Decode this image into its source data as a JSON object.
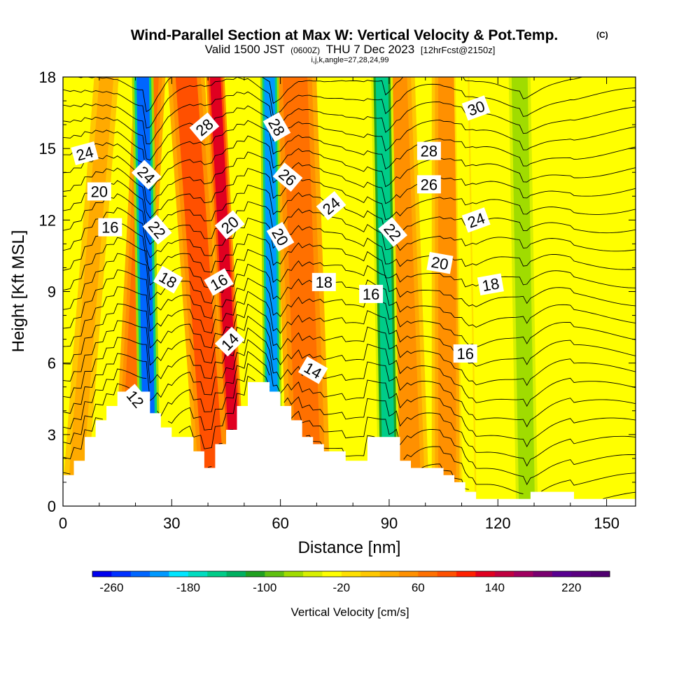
{
  "title": {
    "main": "Wind-Parallel Section at Max W: Vertical Velocity & Pot.Temp.",
    "copyright": "(C)",
    "valid_prefix": "Valid 1500 JST",
    "valid_z": "(0600Z)",
    "valid_date": "THU 7 Dec 2023",
    "valid_fcst": "[12hrFcst@2150z]",
    "indices": "i,j,k,angle=27,28,24,99"
  },
  "chart_data": {
    "type": "heatmap",
    "xlabel": "Distance [nm]",
    "ylabel": "Height [Kft MSL]",
    "xlim": [
      0,
      158
    ],
    "ylim": [
      0,
      18
    ],
    "x_ticks": [
      "0",
      "30",
      "60",
      "90",
      "120",
      "150"
    ],
    "x_tick_values": [
      0,
      30,
      60,
      90,
      120,
      150
    ],
    "y_ticks": [
      "0",
      "3",
      "6",
      "9",
      "12",
      "15",
      "18"
    ],
    "y_tick_values": [
      0,
      3,
      6,
      9,
      12,
      15,
      18
    ],
    "colorbar": {
      "label": "Vertical Velocity [cm/s]",
      "tick_labels": [
        "-260",
        "-180",
        "-100",
        "-20",
        "60",
        "140",
        "220"
      ],
      "tick_values": [
        -260,
        -180,
        -100,
        -20,
        60,
        140,
        220
      ],
      "range": [
        -280,
        260
      ],
      "step": 20,
      "colors": [
        "#0000ee",
        "#0030ff",
        "#0066ff",
        "#0099ff",
        "#00e5ff",
        "#00dcc0",
        "#00cc88",
        "#00b060",
        "#20a020",
        "#60c010",
        "#a0dc00",
        "#d8f000",
        "#ffff00",
        "#ffe000",
        "#ffc800",
        "#ffaa00",
        "#ff9000",
        "#ff7000",
        "#ff5000",
        "#ff2000",
        "#e00020",
        "#c00040",
        "#a00060",
        "#7a0070",
        "#580090",
        "#5a0080",
        "#500070"
      ]
    },
    "terrain_kft": [
      [
        0,
        1.3
      ],
      [
        3,
        1.3
      ],
      [
        3,
        1.9
      ],
      [
        6,
        1.9
      ],
      [
        6,
        2.9
      ],
      [
        9,
        2.9
      ],
      [
        9,
        3.6
      ],
      [
        12,
        3.6
      ],
      [
        12,
        4.2
      ],
      [
        15,
        4.2
      ],
      [
        15,
        4.8
      ],
      [
        24,
        4.8
      ],
      [
        24,
        3.9
      ],
      [
        27,
        3.9
      ],
      [
        27,
        3.3
      ],
      [
        30,
        3.3
      ],
      [
        30,
        2.9
      ],
      [
        36,
        2.9
      ],
      [
        36,
        2.3
      ],
      [
        39,
        2.3
      ],
      [
        39,
        1.6
      ],
      [
        42,
        1.6
      ],
      [
        42,
        2.6
      ],
      [
        45,
        2.6
      ],
      [
        45,
        3.2
      ],
      [
        48,
        3.2
      ],
      [
        48,
        4.2
      ],
      [
        51,
        4.2
      ],
      [
        51,
        5.2
      ],
      [
        57,
        5.2
      ],
      [
        57,
        4.8
      ],
      [
        60,
        4.8
      ],
      [
        60,
        4.2
      ],
      [
        63,
        4.2
      ],
      [
        63,
        3.6
      ],
      [
        66,
        3.6
      ],
      [
        66,
        2.9
      ],
      [
        69,
        2.9
      ],
      [
        69,
        2.6
      ],
      [
        72,
        2.6
      ],
      [
        72,
        2.3
      ],
      [
        78,
        2.3
      ],
      [
        78,
        1.9
      ],
      [
        84,
        1.9
      ],
      [
        84,
        2.9
      ],
      [
        93,
        2.9
      ],
      [
        93,
        1.9
      ],
      [
        96,
        1.9
      ],
      [
        96,
        1.6
      ],
      [
        105,
        1.6
      ],
      [
        105,
        1.3
      ],
      [
        108,
        1.3
      ],
      [
        108,
        1.0
      ],
      [
        111,
        1.0
      ],
      [
        111,
        0.6
      ],
      [
        114,
        0.6
      ],
      [
        114,
        0.3
      ],
      [
        129,
        0.3
      ],
      [
        129,
        0.6
      ],
      [
        141,
        0.6
      ],
      [
        141,
        0.3
      ],
      [
        158,
        0.3
      ]
    ],
    "updraft_bands": [
      {
        "x_at_0": 3,
        "x_at_18": 12,
        "width_nm": 8,
        "value": 20
      },
      {
        "x_at_0": 18,
        "x_at_18": 24,
        "width_nm": 10,
        "value": 60
      },
      {
        "x_at_0": 42,
        "x_at_18": 34,
        "width_nm": 12,
        "value": 80
      },
      {
        "x_at_0": 48,
        "x_at_18": 42,
        "width_nm": 6,
        "value": 120
      },
      {
        "x_at_0": 68,
        "x_at_18": 64,
        "width_nm": 14,
        "value": 60
      },
      {
        "x_at_0": 96,
        "x_at_18": 92,
        "width_nm": 12,
        "value": 40
      },
      {
        "x_at_0": 106,
        "x_at_18": 106,
        "width_nm": 10,
        "value": 40
      }
    ],
    "downdraft_bands": [
      {
        "x_at_0": 24,
        "x_at_18": 22,
        "width_nm": 7,
        "value": -240
      },
      {
        "x_at_0": 58,
        "x_at_18": 57,
        "width_nm": 6,
        "value": -220
      },
      {
        "x_at_0": 90,
        "x_at_18": 88,
        "width_nm": 7,
        "value": -160
      },
      {
        "x_at_0": 128,
        "x_at_18": 126,
        "width_nm": 9,
        "value": -80
      },
      {
        "x_at_0": 112,
        "x_at_18": 110,
        "width_nm": 5,
        "value": -40
      }
    ],
    "theta_contours": {
      "levels": [
        12,
        14,
        16,
        18,
        20,
        22,
        24,
        26,
        28,
        30
      ],
      "labels": [
        {
          "text": "12",
          "x": 20,
          "y": 4.5,
          "angle": 50
        },
        {
          "text": "14",
          "x": 46,
          "y": 6.9,
          "angle": -45
        },
        {
          "text": "14",
          "x": 69,
          "y": 5.7,
          "angle": 30
        },
        {
          "text": "16",
          "x": 13,
          "y": 11.7,
          "angle": 0
        },
        {
          "text": "16",
          "x": 43,
          "y": 9.4,
          "angle": -30
        },
        {
          "text": "16",
          "x": 85,
          "y": 8.9,
          "angle": 0
        },
        {
          "text": "16",
          "x": 111,
          "y": 6.4,
          "angle": 0
        },
        {
          "text": "18",
          "x": 29,
          "y": 9.5,
          "angle": 30
        },
        {
          "text": "18",
          "x": 72,
          "y": 9.4,
          "angle": 0
        },
        {
          "text": "18",
          "x": 118,
          "y": 9.3,
          "angle": -10
        },
        {
          "text": "20",
          "x": 10,
          "y": 13.2,
          "angle": 0
        },
        {
          "text": "20",
          "x": 46,
          "y": 11.8,
          "angle": -40
        },
        {
          "text": "20",
          "x": 60,
          "y": 11.3,
          "angle": 60
        },
        {
          "text": "20",
          "x": 104,
          "y": 10.2,
          "angle": 10
        },
        {
          "text": "22",
          "x": 26,
          "y": 11.6,
          "angle": 50
        },
        {
          "text": "22",
          "x": 91,
          "y": 11.5,
          "angle": 50
        },
        {
          "text": "24",
          "x": 6,
          "y": 14.8,
          "angle": -15
        },
        {
          "text": "24",
          "x": 23,
          "y": 13.9,
          "angle": 45
        },
        {
          "text": "24",
          "x": 74,
          "y": 12.6,
          "angle": -40
        },
        {
          "text": "24",
          "x": 114,
          "y": 12.0,
          "angle": -20
        },
        {
          "text": "26",
          "x": 62,
          "y": 13.8,
          "angle": 40
        },
        {
          "text": "26",
          "x": 101,
          "y": 13.5,
          "angle": 0
        },
        {
          "text": "28",
          "x": 39,
          "y": 15.9,
          "angle": -40
        },
        {
          "text": "28",
          "x": 59,
          "y": 15.9,
          "angle": 60
        },
        {
          "text": "28",
          "x": 101,
          "y": 14.9,
          "angle": 0
        },
        {
          "text": "30",
          "x": 114,
          "y": 16.7,
          "angle": -20
        }
      ]
    }
  }
}
